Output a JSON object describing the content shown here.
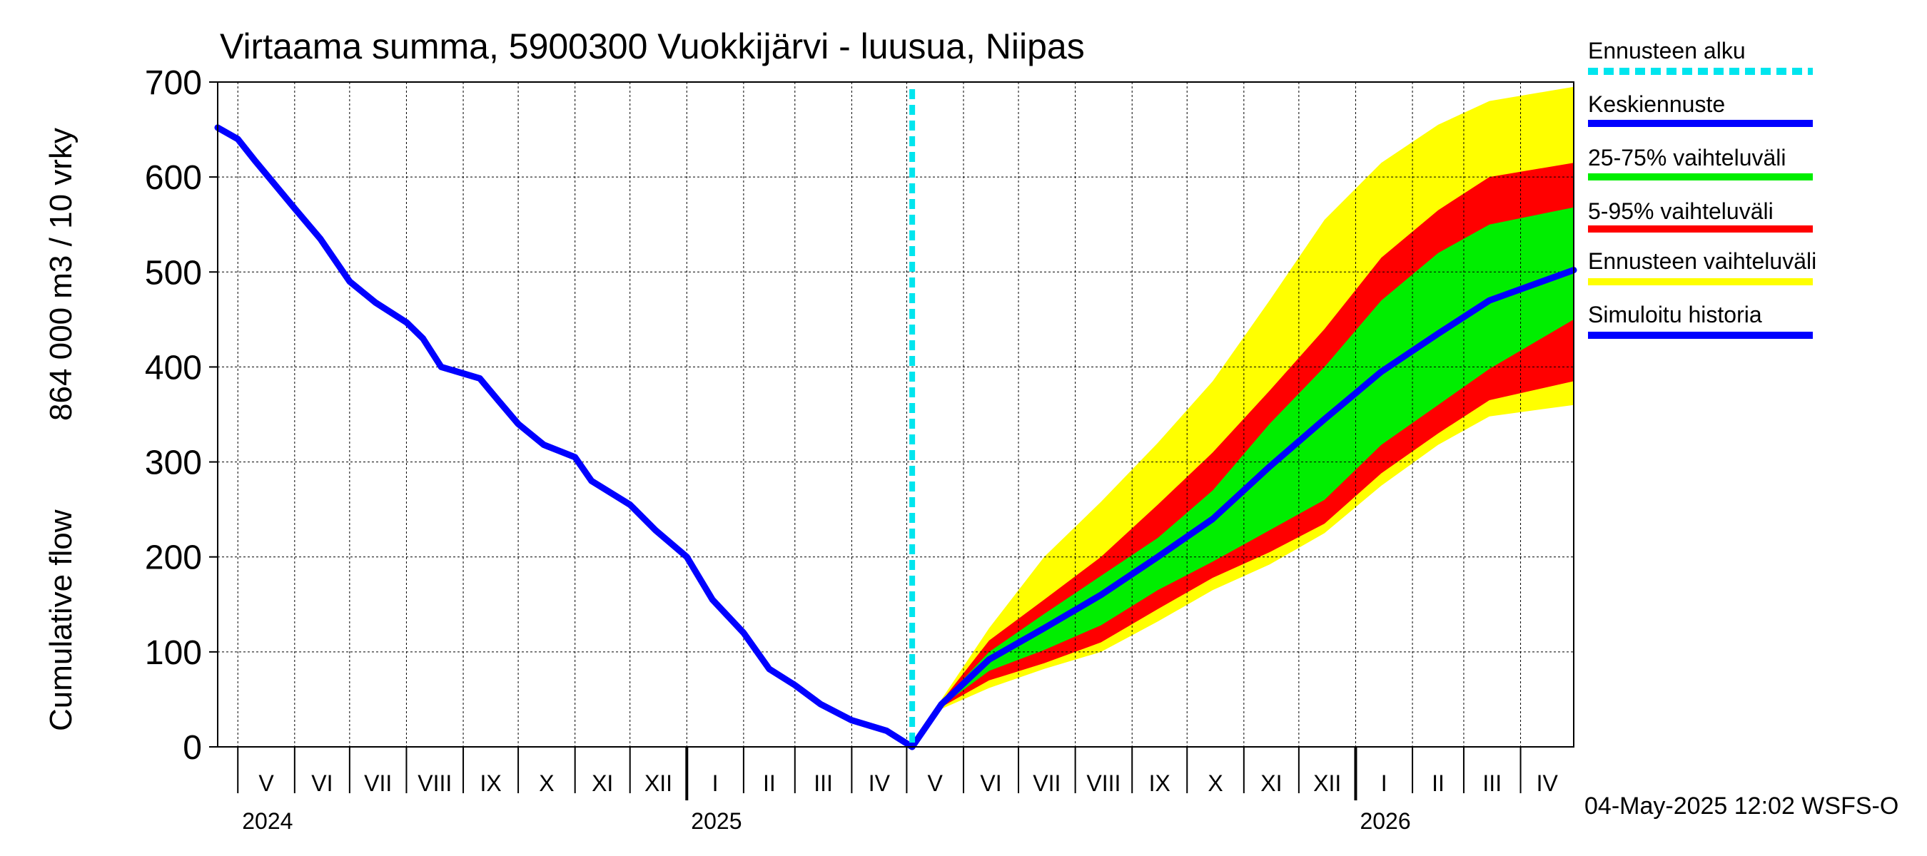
{
  "chart_data": {
    "type": "area",
    "title": "Virtaama summa, 5900300 Vuokkijärvi - luusua, Niipas",
    "ylabel_line1": "Cumulative flow",
    "ylabel_line2": "864 000 m3 / 10 vrky",
    "ylim": [
      0,
      700
    ],
    "y_ticks": [
      0,
      100,
      200,
      300,
      400,
      500,
      600,
      700
    ],
    "x_range": [
      "2024-04-20",
      "2026-04-30"
    ],
    "grid": true,
    "legend_position": "right",
    "month_labels": [
      {
        "label": "V",
        "start": "2024-05-01"
      },
      {
        "label": "VI",
        "start": "2024-06-01"
      },
      {
        "label": "VII",
        "start": "2024-07-01"
      },
      {
        "label": "VIII",
        "start": "2024-08-01"
      },
      {
        "label": "IX",
        "start": "2024-09-01"
      },
      {
        "label": "X",
        "start": "2024-10-01"
      },
      {
        "label": "XI",
        "start": "2024-11-01"
      },
      {
        "label": "XII",
        "start": "2024-12-01"
      },
      {
        "label": "I",
        "start": "2025-01-01"
      },
      {
        "label": "II",
        "start": "2025-02-01"
      },
      {
        "label": "III",
        "start": "2025-03-01"
      },
      {
        "label": "IV",
        "start": "2025-04-01"
      },
      {
        "label": "V",
        "start": "2025-05-01"
      },
      {
        "label": "VI",
        "start": "2025-06-01"
      },
      {
        "label": "VII",
        "start": "2025-07-01"
      },
      {
        "label": "VIII",
        "start": "2025-08-01"
      },
      {
        "label": "IX",
        "start": "2025-09-01"
      },
      {
        "label": "X",
        "start": "2025-10-01"
      },
      {
        "label": "XI",
        "start": "2025-11-01"
      },
      {
        "label": "XII",
        "start": "2025-12-01"
      },
      {
        "label": "I",
        "start": "2026-01-01"
      },
      {
        "label": "II",
        "start": "2026-02-01"
      },
      {
        "label": "III",
        "start": "2026-03-01"
      },
      {
        "label": "IV",
        "start": "2026-04-01"
      }
    ],
    "year_labels": [
      {
        "label": "2024",
        "date": "2024-05-01"
      },
      {
        "label": "2025",
        "date": "2025-01-01"
      },
      {
        "label": "2026",
        "date": "2026-01-01"
      }
    ],
    "forecast_start": "2025-05-04",
    "legend": [
      {
        "key": "forecast_start",
        "label": "Ennusteen alku",
        "color": "#00e5ee",
        "dashed": true
      },
      {
        "key": "mean",
        "label": "Keskiennuste",
        "color": "#0000ff"
      },
      {
        "key": "p25_75",
        "label": "25-75% vaihteluväli",
        "color": "#00ee00"
      },
      {
        "key": "p5_95",
        "label": "5-95% vaihteluväli",
        "color": "#ff0000"
      },
      {
        "key": "range",
        "label": "Ennusteen vaihteluväli",
        "color": "#ffff00"
      },
      {
        "key": "history",
        "label": "Simuloitu historia",
        "color": "#0000ff"
      }
    ],
    "history": {
      "x": [
        "2024-04-20",
        "2024-05-01",
        "2024-05-10",
        "2024-06-01",
        "2024-06-15",
        "2024-07-01",
        "2024-07-15",
        "2024-08-01",
        "2024-08-10",
        "2024-08-20",
        "2024-09-10",
        "2024-09-20",
        "2024-10-01",
        "2024-10-15",
        "2024-11-01",
        "2024-11-10",
        "2024-12-01",
        "2024-12-15",
        "2025-01-01",
        "2025-01-15",
        "2025-02-01",
        "2025-02-15",
        "2025-03-01",
        "2025-03-15",
        "2025-04-01",
        "2025-04-20",
        "2025-05-04"
      ],
      "y": [
        652,
        640,
        618,
        567,
        535,
        490,
        468,
        447,
        430,
        400,
        388,
        365,
        340,
        318,
        305,
        280,
        255,
        228,
        200,
        155,
        120,
        82,
        65,
        45,
        28,
        17,
        0
      ]
    },
    "forecast": {
      "x": [
        "2025-05-04",
        "2025-05-20",
        "2025-06-15",
        "2025-07-15",
        "2025-08-15",
        "2025-09-15",
        "2025-10-15",
        "2025-11-15",
        "2025-12-15",
        "2026-01-15",
        "2026-02-15",
        "2026-03-15",
        "2026-04-30"
      ],
      "mean": [
        0,
        45,
        92,
        125,
        160,
        200,
        240,
        295,
        345,
        395,
        435,
        470,
        502
      ],
      "p25": [
        0,
        43,
        80,
        102,
        128,
        165,
        195,
        228,
        260,
        318,
        360,
        398,
        450
      ],
      "p75": [
        0,
        47,
        100,
        140,
        180,
        220,
        270,
        340,
        400,
        470,
        520,
        550,
        568
      ],
      "p5": [
        0,
        42,
        70,
        88,
        110,
        145,
        178,
        205,
        235,
        288,
        330,
        365,
        385
      ],
      "p95": [
        0,
        48,
        112,
        155,
        200,
        255,
        310,
        375,
        440,
        515,
        565,
        600,
        615
      ],
      "min": [
        0,
        40,
        62,
        82,
        100,
        132,
        165,
        192,
        225,
        275,
        318,
        348,
        360
      ],
      "max": [
        0,
        50,
        125,
        200,
        258,
        320,
        385,
        470,
        555,
        615,
        655,
        680,
        695
      ]
    }
  },
  "footer_timestamp": "04-May-2025 12:02 WSFS-O"
}
